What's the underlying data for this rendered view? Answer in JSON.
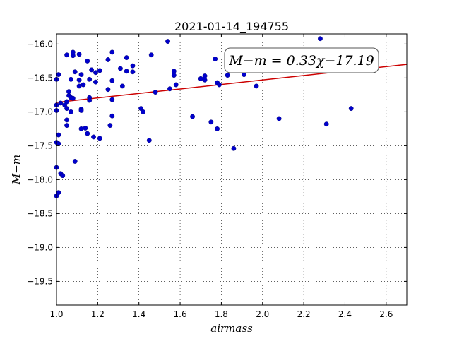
{
  "chart_data": {
    "type": "scatter",
    "title": "2021-01-14_194755",
    "xlabel": "airmass",
    "ylabel": "M−m",
    "xlim": [
      1.0,
      2.7
    ],
    "ylim": [
      -19.85,
      -15.85
    ],
    "y_inverted": false,
    "grid": true,
    "x_ticks": [
      1.0,
      1.2,
      1.4,
      1.6,
      1.8,
      2.0,
      2.2,
      2.4,
      2.6
    ],
    "x_tick_labels": [
      "1.0",
      "1.2",
      "1.4",
      "1.6",
      "1.8",
      "2.0",
      "2.2",
      "2.4",
      "2.6"
    ],
    "y_ticks": [
      -16.0,
      -16.5,
      -17.0,
      -17.5,
      -18.0,
      -18.5,
      -19.0,
      -19.5
    ],
    "y_tick_labels": [
      "−16.0",
      "−16.5",
      "−17.0",
      "−17.5",
      "−18.0",
      "−18.5",
      "−19.0",
      "−19.5"
    ],
    "point_color": "#0000cc",
    "fit_color": "#cc0000",
    "annotation": "M−m = 0.33χ−17.19",
    "fit": {
      "slope": 0.33,
      "intercept": -17.19,
      "x_range": [
        1.0,
        2.7
      ]
    },
    "points": [
      [
        1.0,
        -16.52
      ],
      [
        1.01,
        -16.45
      ],
      [
        1.0,
        -16.9
      ],
      [
        1.0,
        -16.98
      ],
      [
        1.02,
        -16.87
      ],
      [
        1.0,
        -17.45
      ],
      [
        1.01,
        -17.47
      ],
      [
        1.01,
        -17.34
      ],
      [
        1.0,
        -17.82
      ],
      [
        1.02,
        -17.91
      ],
      [
        1.03,
        -17.94
      ],
      [
        1.01,
        -18.19
      ],
      [
        1.0,
        -18.24
      ],
      [
        1.05,
        -16.16
      ],
      [
        1.08,
        -16.17
      ],
      [
        1.08,
        -16.12
      ],
      [
        1.11,
        -16.15
      ],
      [
        1.07,
        -16.52
      ],
      [
        1.09,
        -16.41
      ],
      [
        1.11,
        -16.53
      ],
      [
        1.12,
        -16.45
      ],
      [
        1.06,
        -16.7
      ],
      [
        1.06,
        -16.76
      ],
      [
        1.05,
        -16.85
      ],
      [
        1.04,
        -16.9
      ],
      [
        1.05,
        -16.95
      ],
      [
        1.07,
        -16.79
      ],
      [
        1.08,
        -16.8
      ],
      [
        1.07,
        -17.0
      ],
      [
        1.05,
        -17.12
      ],
      [
        1.05,
        -17.2
      ],
      [
        1.12,
        -16.96
      ],
      [
        1.12,
        -16.98
      ],
      [
        1.12,
        -17.25
      ],
      [
        1.14,
        -17.24
      ],
      [
        1.09,
        -17.73
      ],
      [
        1.11,
        -16.62
      ],
      [
        1.13,
        -16.6
      ],
      [
        1.15,
        -16.25
      ],
      [
        1.17,
        -16.38
      ],
      [
        1.19,
        -16.42
      ],
      [
        1.21,
        -16.39
      ],
      [
        1.16,
        -16.52
      ],
      [
        1.19,
        -16.56
      ],
      [
        1.16,
        -16.79
      ],
      [
        1.16,
        -16.83
      ],
      [
        1.15,
        -17.32
      ],
      [
        1.18,
        -17.37
      ],
      [
        1.21,
        -17.39
      ],
      [
        1.25,
        -16.23
      ],
      [
        1.27,
        -16.12
      ],
      [
        1.31,
        -16.36
      ],
      [
        1.34,
        -16.2
      ],
      [
        1.37,
        -16.32
      ],
      [
        1.34,
        -16.4
      ],
      [
        1.37,
        -16.41
      ],
      [
        1.27,
        -16.54
      ],
      [
        1.25,
        -16.67
      ],
      [
        1.32,
        -16.62
      ],
      [
        1.27,
        -16.82
      ],
      [
        1.27,
        -17.06
      ],
      [
        1.26,
        -17.2
      ],
      [
        1.41,
        -16.95
      ],
      [
        1.42,
        -17.0
      ],
      [
        1.45,
        -17.42
      ],
      [
        1.46,
        -16.16
      ],
      [
        1.48,
        -16.71
      ],
      [
        1.54,
        -15.96
      ],
      [
        1.57,
        -16.4
      ],
      [
        1.57,
        -16.46
      ],
      [
        1.58,
        -16.6
      ],
      [
        1.55,
        -16.66
      ],
      [
        1.66,
        -17.07
      ],
      [
        1.7,
        -16.51
      ],
      [
        1.72,
        -16.47
      ],
      [
        1.72,
        -16.53
      ],
      [
        1.75,
        -17.15
      ],
      [
        1.77,
        -16.22
      ],
      [
        1.78,
        -16.57
      ],
      [
        1.79,
        -16.6
      ],
      [
        1.78,
        -17.25
      ],
      [
        1.83,
        -16.46
      ],
      [
        1.86,
        -17.54
      ],
      [
        1.91,
        -16.45
      ],
      [
        1.97,
        -16.62
      ],
      [
        2.08,
        -17.1
      ],
      [
        2.28,
        -15.92
      ],
      [
        2.31,
        -17.18
      ],
      [
        2.43,
        -16.95
      ]
    ]
  }
}
